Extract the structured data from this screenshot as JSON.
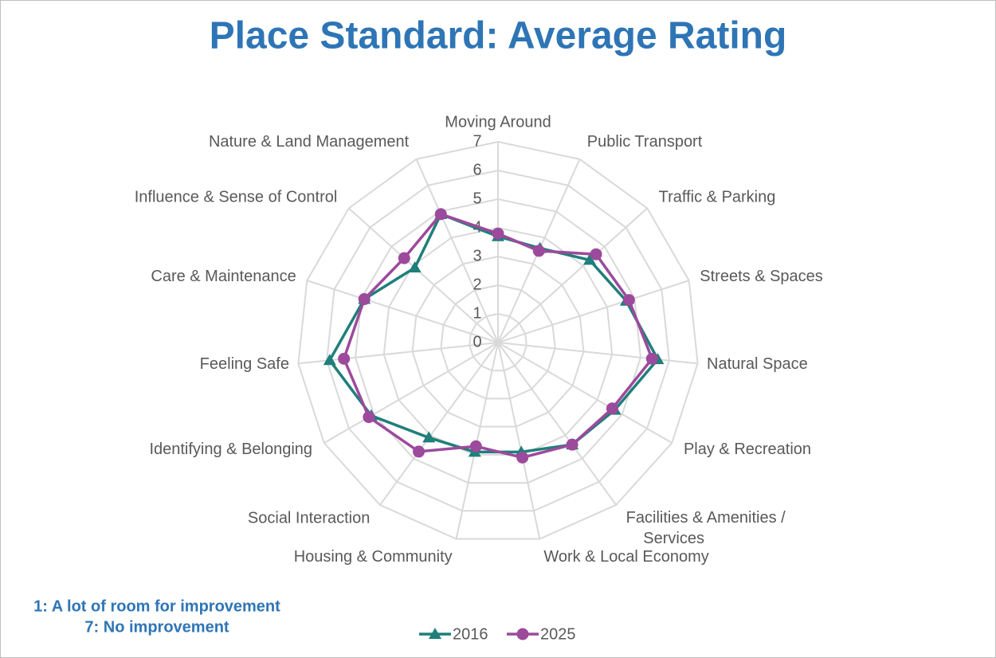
{
  "chart_data": {
    "type": "radar",
    "title": "Place Standard: Average Rating",
    "note": [
      "1: A lot of room for improvement",
      "7: No improvement"
    ],
    "categories": [
      "Moving Around",
      "Public Transport",
      "Traffic & Parking",
      "Streets & Spaces",
      "Natural Space",
      "Play & Recreation",
      "Facilities & Amenities / Services",
      "Work & Local Economy",
      "Housing & Community",
      "Social Interaction",
      "Identifying & Belonging",
      "Feeling Safe",
      "Care & Maintenance",
      "Influence & Sense of Control",
      "Nature & Land Management"
    ],
    "series": [
      {
        "name": "2016",
        "color": "#1f7f7a",
        "marker": "triangle",
        "values": [
          3.7,
          3.6,
          4.3,
          4.7,
          5.6,
          4.7,
          4.4,
          3.9,
          3.9,
          4.1,
          5.1,
          5.9,
          4.9,
          3.9,
          4.9
        ]
      },
      {
        "name": "2025",
        "color": "#9c4a9c",
        "marker": "circle",
        "values": [
          3.8,
          3.5,
          4.6,
          4.8,
          5.4,
          4.6,
          4.4,
          4.1,
          3.7,
          4.7,
          5.2,
          5.4,
          4.9,
          4.4,
          4.9
        ]
      }
    ],
    "ylim": [
      0,
      7
    ],
    "yticks": [
      0,
      1,
      2,
      3,
      4,
      5,
      6,
      7
    ],
    "grid": true,
    "legend": "bottom"
  }
}
